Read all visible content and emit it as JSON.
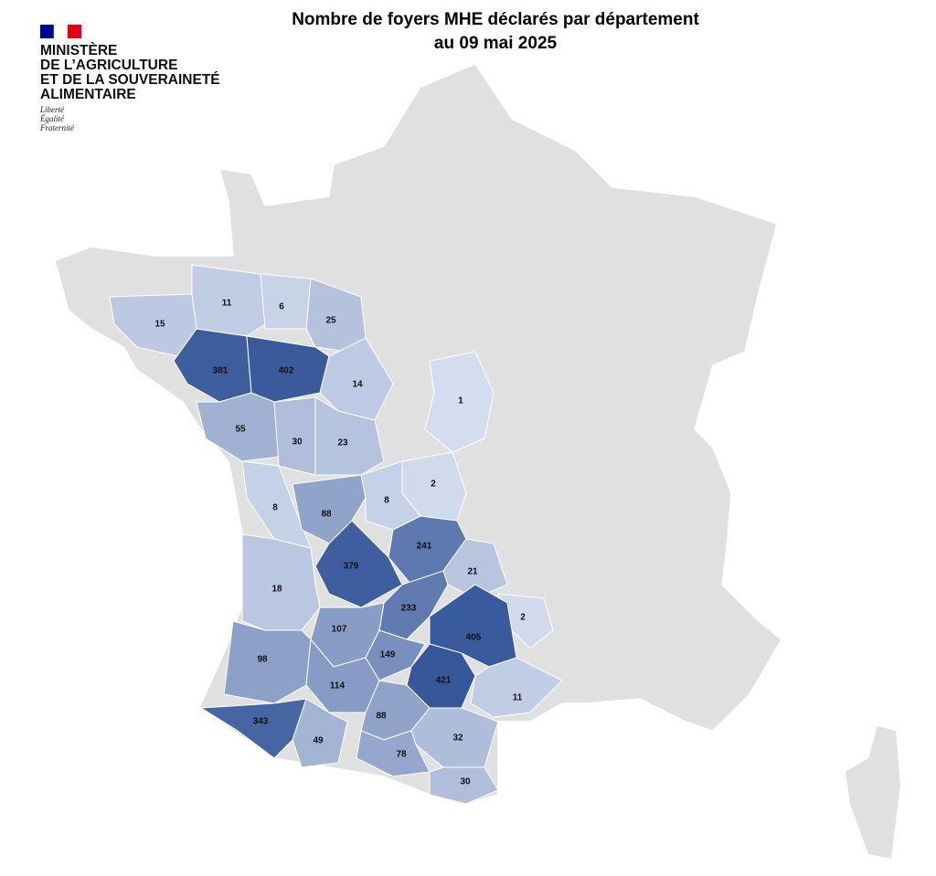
{
  "header": {
    "title": [
      "Nombre de foyers MHE déclarés par département",
      "au 09 mai 2025"
    ]
  },
  "logo": {
    "ministry": [
      "MINISTÈRE",
      "DE L’AGRICULTURE",
      "ET DE LA SOUVERAINETÉ",
      "ALIMENTAIRE"
    ],
    "motto": [
      "Liberté",
      "Égalité",
      "Fraternité"
    ]
  },
  "map": {
    "type": "choropleth",
    "color_low": "#dce4f3",
    "color_high": "#36579a",
    "background": "#e0e0e0",
    "departments": [
      {
        "value": 15
      },
      {
        "value": 11
      },
      {
        "value": 6
      },
      {
        "value": 25
      },
      {
        "value": 381
      },
      {
        "value": 402
      },
      {
        "value": 14
      },
      {
        "value": 1
      },
      {
        "value": 55
      },
      {
        "value": 30
      },
      {
        "value": 23
      },
      {
        "value": 2
      },
      {
        "value": 8
      },
      {
        "value": 88
      },
      {
        "value": 8
      },
      {
        "value": 241
      },
      {
        "value": 379
      },
      {
        "value": 21
      },
      {
        "value": 18
      },
      {
        "value": 233
      },
      {
        "value": 2
      },
      {
        "value": 107
      },
      {
        "value": 405
      },
      {
        "value": 98
      },
      {
        "value": 149
      },
      {
        "value": 421
      },
      {
        "value": 114
      },
      {
        "value": 11
      },
      {
        "value": 343
      },
      {
        "value": 88
      },
      {
        "value": 49
      },
      {
        "value": 32
      },
      {
        "value": 78
      },
      {
        "value": 30
      }
    ]
  }
}
